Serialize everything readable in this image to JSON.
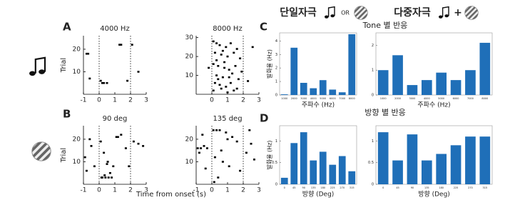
{
  "header": {
    "single": "단일자극",
    "or": "OR",
    "multi": "다중자극",
    "plus": "+"
  },
  "panel_labels": [
    "A",
    "B",
    "C",
    "D"
  ],
  "shared_xlabel": "Time from onset (s)",
  "group_titles": [
    "Tone 별 반응",
    "방향 별 반응"
  ],
  "chart_data": [
    {
      "type": "scatter",
      "title": "4000 Hz",
      "ylabel": "Trial",
      "color": "#000000",
      "markers": [
        0,
        2
      ],
      "x": [
        -0.8,
        -0.7,
        -0.6,
        0.1,
        0.2,
        0.3,
        0.5,
        1.3,
        1.4,
        1.8,
        2.1,
        2.5
      ],
      "y": [
        18,
        18,
        7,
        6,
        5,
        5,
        5,
        22,
        22,
        6,
        22,
        10
      ],
      "xlim": [
        -1,
        3
      ],
      "xticks": [
        -1,
        0,
        1,
        2,
        3
      ],
      "ylim": [
        0,
        26
      ],
      "yticks": [
        10,
        20
      ]
    },
    {
      "type": "scatter",
      "title": "8000 Hz",
      "color": "#000000",
      "markers": [
        0,
        2
      ],
      "x": [
        0.1,
        0.3,
        0.5,
        0.9,
        1.2,
        1.6,
        0.2,
        0.6,
        1.0,
        1.4,
        1.8,
        0.1,
        0.4,
        0.8,
        1.1,
        1.5,
        1.9,
        0.3,
        0.7,
        1.3,
        1.7,
        0.2,
        0.5,
        0.9,
        1.2,
        1.6,
        0.1,
        0.6,
        1.0,
        1.4,
        0.3,
        0.8,
        -0.2,
        2.3,
        2.6,
        0.4,
        1.1,
        0.7
      ],
      "y": [
        28,
        27,
        26,
        25,
        27,
        24,
        22,
        21,
        20,
        22,
        19,
        16,
        15,
        14,
        13,
        15,
        12,
        10,
        9,
        11,
        8,
        6,
        5,
        4,
        6,
        3,
        2,
        3,
        1,
        2,
        18,
        17,
        14,
        7,
        25,
        8,
        9,
        23
      ],
      "xlim": [
        -1,
        3
      ],
      "xticks": [
        0,
        1,
        2,
        3
      ],
      "ylim": [
        0,
        31
      ],
      "yticks": [
        10,
        20,
        30
      ]
    },
    {
      "type": "scatter",
      "title": "90 deg",
      "ylabel": "Trial",
      "color": "#000000",
      "markers": [
        0,
        2
      ],
      "x": [
        -0.9,
        -0.5,
        -0.3,
        0.2,
        0.4,
        0.6,
        0.8,
        0.9,
        0.3,
        1.1,
        1.4,
        1.7,
        0.5,
        0.1,
        -0.6,
        2.2,
        2.5,
        2.8,
        1.9,
        0.7,
        1.2,
        -0.8,
        0.15,
        0.35,
        0.55
      ],
      "y": [
        12,
        17,
        8,
        3,
        3,
        3,
        3,
        8,
        14,
        21,
        22,
        16,
        9,
        19,
        20,
        19,
        18,
        17,
        8,
        5,
        21,
        6,
        3,
        4,
        10
      ],
      "xlim": [
        -1,
        3
      ],
      "xticks": [
        -1,
        0,
        1,
        2,
        3
      ],
      "ylim": [
        0,
        26
      ],
      "yticks": [
        10,
        20
      ]
    },
    {
      "type": "scatter",
      "title": "135 deg",
      "color": "#000000",
      "markers": [
        0,
        2
      ],
      "x": [
        -0.9,
        -0.7,
        -0.5,
        -0.3,
        -0.8,
        -0.6,
        0.1,
        0.3,
        0.5,
        0.9,
        1.3,
        1.6,
        0.2,
        0.7,
        1.1,
        2.2,
        2.5,
        2.7,
        0.4,
        1.8,
        -0.4,
        0.6,
        1.0,
        2.4,
        0.15
      ],
      "y": [
        16,
        16,
        17,
        16,
        14,
        22,
        24,
        24,
        24,
        23,
        21,
        19,
        12,
        10,
        8,
        14,
        18,
        11,
        3,
        6,
        7,
        15,
        20,
        24,
        1
      ],
      "xlim": [
        -1,
        3
      ],
      "xticks": [
        -1,
        0,
        1,
        2,
        3
      ],
      "ylim": [
        0,
        26
      ],
      "yticks": [
        10,
        20
      ]
    },
    {
      "type": "bar",
      "ylabel": "발화율 (Hz)",
      "xlabel": "주파수 (Hz)",
      "color": "#1f6fb8",
      "categories": [
        "1000",
        "2000",
        "3000",
        "4000",
        "5000",
        "6000",
        "7000",
        "8000"
      ],
      "values": [
        0.05,
        3.5,
        0.9,
        0.5,
        1.1,
        0.4,
        0.2,
        4.5
      ],
      "ylim": [
        0,
        4.6
      ],
      "yticks": [
        0,
        1,
        2,
        3,
        4
      ]
    },
    {
      "type": "bar",
      "xlabel": "주파수 (Hz)",
      "color": "#1f6fb8",
      "categories": [
        "1000",
        "2000",
        "3000",
        "4000",
        "5000",
        "6000",
        "7000",
        "8000"
      ],
      "values": [
        1.0,
        1.6,
        0.4,
        0.6,
        0.9,
        0.6,
        1.0,
        2.1
      ],
      "ylim": [
        0,
        2.5
      ],
      "yticks": [
        0,
        1,
        2
      ]
    },
    {
      "type": "bar",
      "ylabel": "발화율 (Hz)",
      "xlabel": "방향 (Deg)",
      "color": "#1f6fb8",
      "categories": [
        "0",
        "45",
        "90",
        "135",
        "180",
        "225",
        "270",
        "315"
      ],
      "values": [
        0.15,
        0.95,
        1.2,
        0.55,
        0.75,
        0.45,
        0.65,
        0.3
      ],
      "ylim": [
        0,
        1.35
      ],
      "yticks": [
        0,
        0.5,
        1
      ]
    },
    {
      "type": "bar",
      "xlabel": "방향 (Deg)",
      "color": "#1f6fb8",
      "categories": [
        "0",
        "45",
        "90",
        "135",
        "180",
        "225",
        "270",
        "315"
      ],
      "values": [
        1.2,
        0.55,
        1.15,
        0.55,
        0.7,
        0.9,
        1.1,
        1.1
      ],
      "ylim": [
        0,
        1.35
      ],
      "yticks": [
        0,
        0.5,
        1
      ]
    }
  ]
}
